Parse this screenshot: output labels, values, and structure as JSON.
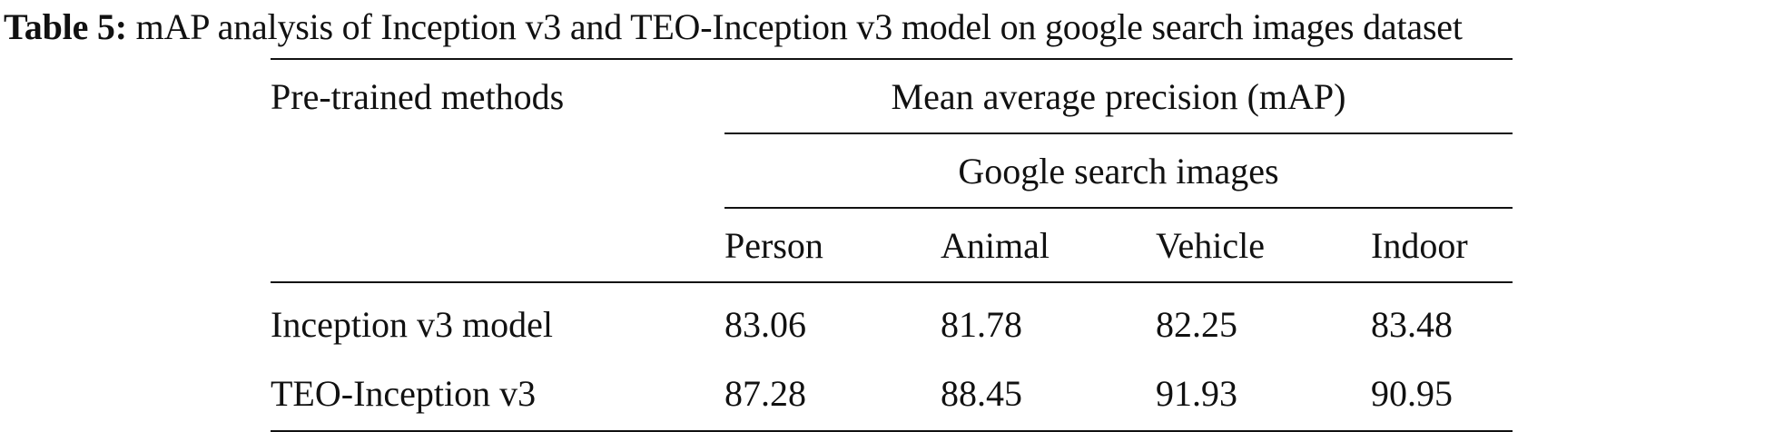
{
  "caption": {
    "label": "Table 5:",
    "text": "mAP analysis of Inception v3 and TEO-Inception v3 model on google search images dataset"
  },
  "table": {
    "method_header": "Pre-trained methods",
    "metric_header": "Mean average precision (mAP)",
    "dataset_header": "Google search images",
    "columns": [
      "Person",
      "Animal",
      "Vehicle",
      "Indoor"
    ],
    "rows": [
      {
        "method": "Inception v3 model",
        "values": [
          "83.06",
          "81.78",
          "82.25",
          "83.48"
        ]
      },
      {
        "method": "TEO-Inception v3",
        "values": [
          "87.28",
          "88.45",
          "91.93",
          "90.95"
        ]
      }
    ]
  }
}
